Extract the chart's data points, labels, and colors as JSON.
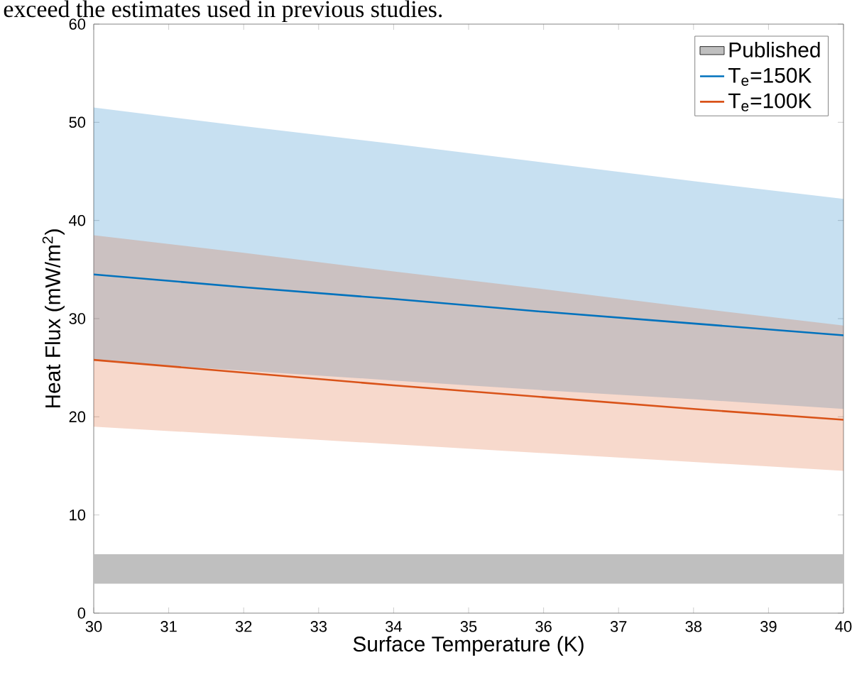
{
  "chart_data": {
    "type": "line",
    "xlabel": "Surface Temperature (K)",
    "ylabel": "Heat Flux (mW/m$^{2}$)",
    "annotations": [
      "exceed the estimates used in previous studies."
    ],
    "x": [
      30,
      32,
      34,
      36,
      38,
      40
    ],
    "series": [
      {
        "name": "T$_{e}$=150K",
        "color": "#0072bd",
        "values": [
          34.5,
          33.2,
          32.0,
          30.7,
          29.5,
          28.3
        ],
        "lower": [
          25.7,
          24.7,
          23.7,
          22.7,
          21.8,
          20.8
        ],
        "upper": [
          51.5,
          49.6,
          47.8,
          45.9,
          44.0,
          42.2
        ]
      },
      {
        "name": "T$_{e}$=100K",
        "color": "#d95319",
        "values": [
          25.8,
          24.5,
          23.2,
          22.0,
          20.8,
          19.7
        ],
        "lower": [
          19.0,
          18.1,
          17.2,
          16.3,
          15.4,
          14.5
        ],
        "upper": [
          38.5,
          36.7,
          34.8,
          33.0,
          31.1,
          29.3
        ]
      }
    ],
    "bands": [
      {
        "axis": "y",
        "from": 3,
        "to": 6,
        "label": "Published",
        "color": "#bfbfbf"
      }
    ],
    "xlim": [
      30,
      40
    ],
    "ylim": [
      0,
      60
    ],
    "xticks": [
      30,
      31,
      32,
      33,
      34,
      35,
      36,
      37,
      38,
      39,
      40
    ],
    "yticks": [
      0,
      10,
      20,
      30,
      40,
      50,
      60
    ],
    "legend": "top right",
    "grid": false,
    "line_style": "solid",
    "marker": "none"
  }
}
